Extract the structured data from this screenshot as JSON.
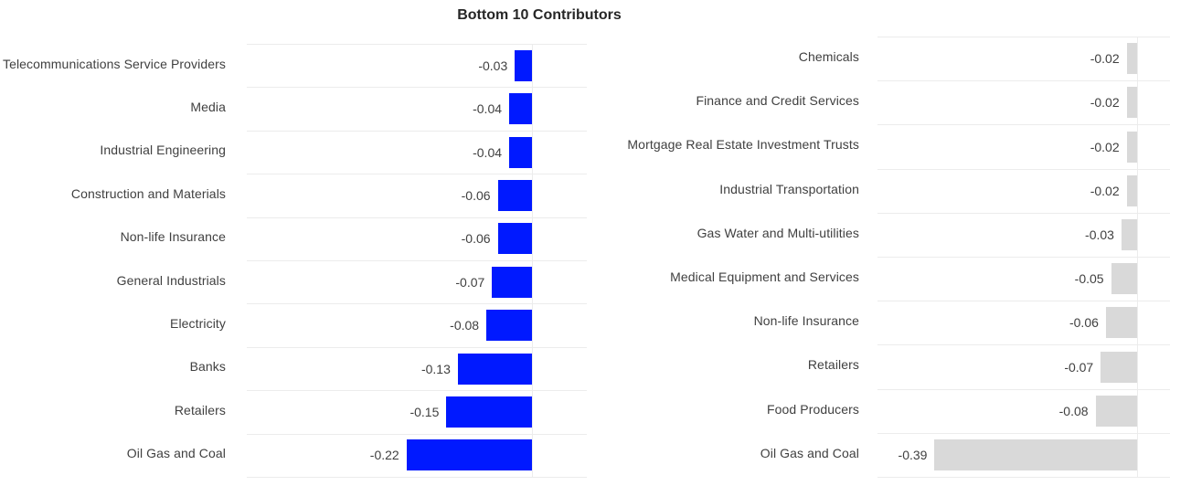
{
  "title": "Bottom 10 Contributors",
  "chart_data": [
    {
      "type": "hbar",
      "color": "#0019ff",
      "xlim": [
        -0.5,
        0
      ],
      "categories": [
        "Telecommunications Service Providers",
        "Media",
        "Industrial Engineering",
        "Construction and Materials",
        "Non-life Insurance",
        "General Industrials",
        "Electricity",
        "Banks",
        "Retailers",
        "Oil Gas and Coal"
      ],
      "values": [
        -0.03,
        -0.04,
        -0.04,
        -0.06,
        -0.06,
        -0.07,
        -0.08,
        -0.13,
        -0.15,
        -0.22
      ]
    },
    {
      "type": "hbar",
      "color": "#d9d9d9",
      "xlim": [
        -0.5,
        0
      ],
      "categories": [
        "Chemicals",
        "Finance and Credit Services",
        "Mortgage Real Estate Investment Trusts",
        "Industrial Transportation",
        "Gas Water and Multi-utilities",
        "Medical Equipment and Services",
        "Non-life Insurance",
        "Retailers",
        "Food Producers",
        "Oil Gas and Coal"
      ],
      "values": [
        -0.02,
        -0.02,
        -0.02,
        -0.02,
        -0.03,
        -0.05,
        -0.06,
        -0.07,
        -0.08,
        -0.39
      ]
    }
  ]
}
